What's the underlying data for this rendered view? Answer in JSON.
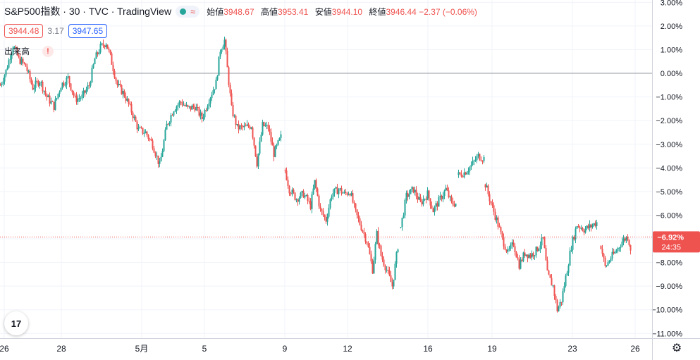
{
  "header": {
    "symbol": "S&P500指数 · 30 · TVC · TradingView",
    "ohlc": [
      {
        "label": "始値",
        "value": "3948.67"
      },
      {
        "label": "高値",
        "value": "3953.41"
      },
      {
        "label": "安値",
        "value": "3944.10"
      },
      {
        "label": "終値",
        "value": "3946.44 −2.37 (−0.06%)"
      }
    ],
    "bid": "3944.48",
    "spread": "3.17",
    "ask": "3947.65",
    "volume_label": "出来高",
    "warning": "!"
  },
  "colors": {
    "up": "#26a69a",
    "down": "#ef5350",
    "grid": "#f0f3fa",
    "text": "#131722"
  },
  "logo": "17",
  "chart_data": {
    "type": "candlestick",
    "y_unit": "%",
    "ylim": [
      -11.2,
      3.1
    ],
    "yticks": [
      "3.00%",
      "2.00%",
      "1.00%",
      "0.00%",
      "−1.00%",
      "−2.00%",
      "−3.00%",
      "−4.00%",
      "−5.00%",
      "−6.00%",
      "−7.00%",
      "−8.00%",
      "−9.00%",
      "−10.00%",
      "−11.00%"
    ],
    "ytick_values": [
      3,
      2,
      1,
      0,
      -1,
      -2,
      -3,
      -4,
      -5,
      -6,
      -7,
      -8,
      -9,
      -10,
      -11
    ],
    "xticks": [
      "26",
      "28",
      "5月",
      "5",
      "9",
      "12",
      "16",
      "19",
      "23",
      "26"
    ],
    "baseline": 0,
    "last_value_label": "−6.92%",
    "countdown": "24:35",
    "last_value": -6.92,
    "series": [
      {
        "path": [
          [
            0,
            -0.5
          ],
          [
            8,
            0.1
          ],
          [
            18,
            1.2
          ],
          [
            26,
            0.6
          ],
          [
            36,
            0.3
          ],
          [
            46,
            -0.6
          ],
          [
            56,
            -0.3
          ],
          [
            66,
            -1.0
          ],
          [
            76,
            -1.4
          ],
          [
            86,
            -0.5
          ],
          [
            96,
            -0.2
          ],
          [
            106,
            -1.1
          ],
          [
            116,
            -1.0
          ],
          [
            126,
            -0.5
          ],
          [
            134,
            0.6
          ],
          [
            142,
            1.1
          ],
          [
            150,
            1.3
          ],
          [
            156,
            0.7
          ],
          [
            166,
            -0.5
          ],
          [
            176,
            -0.9
          ],
          [
            186,
            -1.6
          ],
          [
            196,
            -2.4
          ],
          [
            206,
            -2.5
          ],
          [
            216,
            -3.0
          ],
          [
            226,
            -3.9
          ],
          [
            236,
            -2.2
          ],
          [
            246,
            -1.5
          ],
          [
            256,
            -1.2
          ],
          [
            266,
            -1.5
          ],
          [
            276,
            -1.4
          ],
          [
            286,
            -1.9
          ],
          [
            296,
            -1.1
          ],
          [
            306,
            -0.4
          ],
          [
            312,
            1.0
          ],
          [
            318,
            1.4
          ],
          [
            322,
            0.2
          ],
          [
            328,
            -1.5
          ],
          [
            336,
            -2.3
          ],
          [
            346,
            -2.3
          ],
          [
            356,
            -2.2
          ],
          [
            364,
            -3.8
          ],
          [
            372,
            -2.2
          ],
          [
            380,
            -2.3
          ],
          [
            388,
            -3.4
          ],
          [
            398,
            -2.7
          ]
        ]
      },
      {
        "path": [
          [
            404,
            -4.1
          ],
          [
            410,
            -4.9
          ],
          [
            420,
            -5.3
          ],
          [
            430,
            -5.1
          ],
          [
            440,
            -5.6
          ],
          [
            446,
            -4.6
          ],
          [
            454,
            -5.8
          ],
          [
            462,
            -6.2
          ],
          [
            470,
            -5.1
          ],
          [
            480,
            -4.9
          ],
          [
            488,
            -5.1
          ],
          [
            496,
            -5.0
          ],
          [
            504,
            -5.9
          ],
          [
            512,
            -6.5
          ],
          [
            520,
            -7.1
          ],
          [
            528,
            -8.3
          ],
          [
            534,
            -6.8
          ],
          [
            540,
            -7.7
          ],
          [
            548,
            -8.3
          ],
          [
            556,
            -9.0
          ],
          [
            564,
            -7.3
          ]
        ]
      },
      {
        "path": [
          [
            568,
            -6.5
          ],
          [
            576,
            -5.2
          ],
          [
            586,
            -4.9
          ],
          [
            596,
            -5.5
          ],
          [
            606,
            -5.1
          ],
          [
            614,
            -5.8
          ],
          [
            622,
            -5.4
          ],
          [
            632,
            -4.9
          ],
          [
            640,
            -5.5
          ],
          [
            646,
            -5.5
          ]
        ]
      },
      {
        "path": [
          [
            650,
            -4.3
          ],
          [
            658,
            -4.2
          ],
          [
            668,
            -3.9
          ],
          [
            678,
            -3.5
          ],
          [
            686,
            -3.6
          ]
        ]
      },
      {
        "path": [
          [
            688,
            -4.7
          ],
          [
            696,
            -5.5
          ],
          [
            704,
            -6.2
          ],
          [
            712,
            -7.0
          ],
          [
            720,
            -7.6
          ],
          [
            728,
            -7.2
          ],
          [
            736,
            -8.1
          ],
          [
            744,
            -7.6
          ],
          [
            752,
            -7.7
          ],
          [
            760,
            -7.5
          ],
          [
            770,
            -7.0
          ],
          [
            776,
            -8.5
          ],
          [
            784,
            -9.0
          ],
          [
            790,
            -10.0
          ],
          [
            796,
            -9.6
          ],
          [
            804,
            -8.3
          ],
          [
            810,
            -7.3
          ],
          [
            818,
            -6.4
          ],
          [
            828,
            -6.6
          ],
          [
            836,
            -6.5
          ],
          [
            846,
            -6.3
          ]
        ]
      },
      {
        "path": [
          [
            852,
            -7.3
          ],
          [
            858,
            -8.2
          ],
          [
            866,
            -7.8
          ],
          [
            874,
            -7.5
          ],
          [
            882,
            -7.1
          ],
          [
            890,
            -6.9
          ],
          [
            894,
            -7.4
          ]
        ]
      }
    ]
  }
}
